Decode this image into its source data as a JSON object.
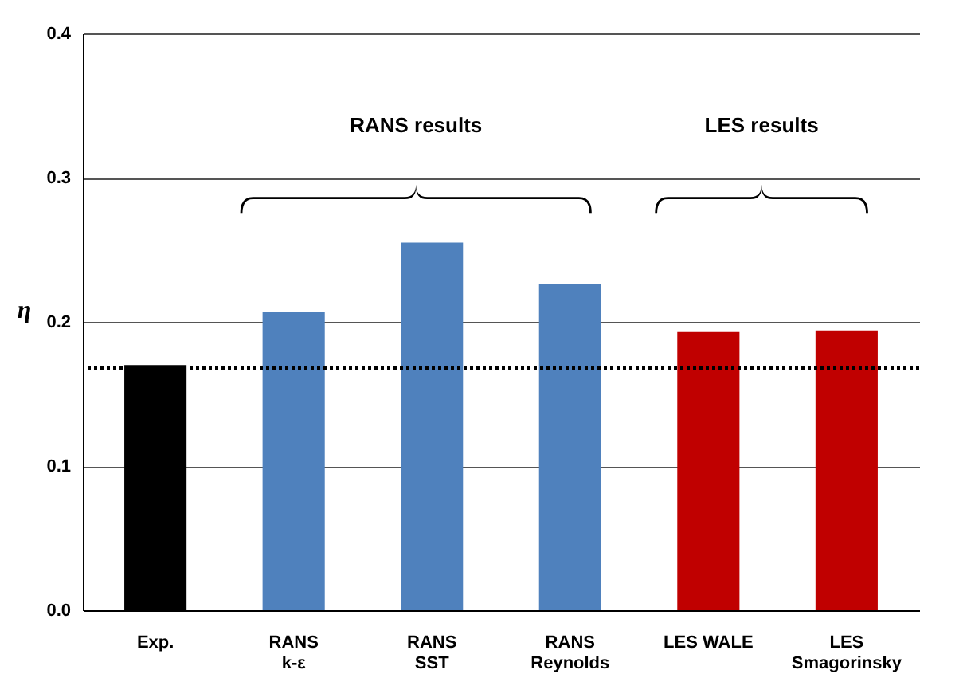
{
  "chart_data": {
    "type": "bar",
    "ylabel": "η",
    "categories": [
      "Exp.",
      "RANS\nk-ε",
      "RANS\nSST",
      "RANS\nReynolds",
      "LES WALE",
      "LES\nSmagorinsky"
    ],
    "values": [
      0.17,
      0.207,
      0.255,
      0.226,
      0.193,
      0.194
    ],
    "colors": [
      "#000000",
      "#4f81bd",
      "#4f81bd",
      "#4f81bd",
      "#c00000",
      "#c00000"
    ],
    "ylim": [
      0,
      0.4
    ],
    "yticks": [
      {
        "value": 0,
        "label": "0.0"
      },
      0.1,
      0.2,
      0.3,
      0.4
    ],
    "grid": "y",
    "ref_lines": [
      {
        "axis": "y",
        "value": 0.168,
        "line_style": "dotted",
        "color": "#000000"
      }
    ],
    "annotations": [
      "RANS results",
      "LES results"
    ]
  }
}
